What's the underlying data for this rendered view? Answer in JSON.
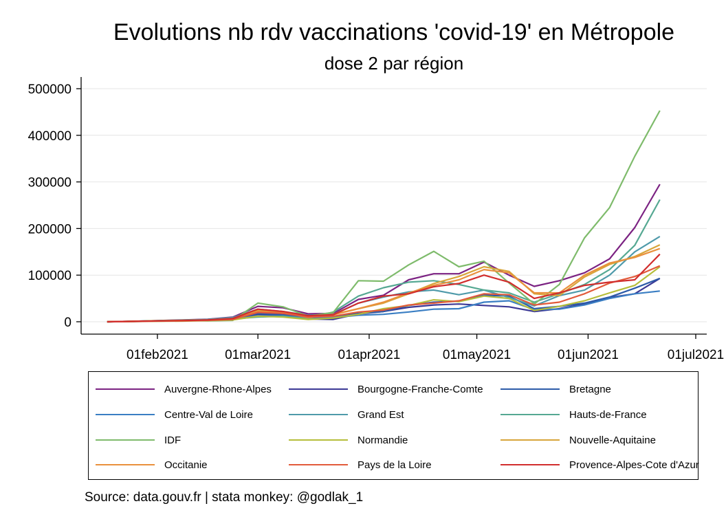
{
  "chart_data": {
    "type": "line",
    "title": "Evolutions nb rdv vaccinations 'covid-19' en Métropole",
    "subtitle": "dose 2 par région",
    "xlabel": "",
    "ylabel": "",
    "ylim": [
      -20000,
      520000
    ],
    "xlim": [
      "2021-01-14",
      "2021-07-01"
    ],
    "y_ticks": [
      0,
      100000,
      200000,
      300000,
      400000,
      500000
    ],
    "y_tick_labels": [
      "0",
      "100000",
      "200000",
      "300000",
      "400000",
      "500000"
    ],
    "x_ticks": [
      "2021-02-01",
      "2021-03-01",
      "2021-04-01",
      "2021-05-01",
      "2021-06-01",
      "2021-07-01"
    ],
    "x_tick_labels": [
      "01feb2021",
      "01mar2021",
      "01apr2021",
      "01may2021",
      "01jun2021",
      "01jul2021"
    ],
    "grid": true,
    "legend_position": "bottom",
    "note": "Source: data.gouv.fr | stata monkey: @godlak_1",
    "x": [
      "2021-01-18",
      "2021-01-25",
      "2021-02-01",
      "2021-02-08",
      "2021-02-15",
      "2021-02-22",
      "2021-03-01",
      "2021-03-08",
      "2021-03-15",
      "2021-03-22",
      "2021-03-29",
      "2021-04-05",
      "2021-04-12",
      "2021-04-19",
      "2021-04-26",
      "2021-05-03",
      "2021-05-10",
      "2021-05-17",
      "2021-05-24",
      "2021-05-31",
      "2021-06-07",
      "2021-06-14",
      "2021-06-21"
    ],
    "series": [
      {
        "name": "Auvergne-Rhone-Alpes",
        "color": "#7b2282",
        "values": [
          0,
          1000,
          2500,
          4000,
          5500,
          10000,
          33000,
          30000,
          17000,
          18000,
          48000,
          57000,
          90000,
          103000,
          103000,
          128000,
          100000,
          76000,
          88000,
          105000,
          135000,
          202000,
          295000
        ]
      },
      {
        "name": "Bourgogne-Franche-Comte",
        "color": "#3b3895",
        "values": [
          0,
          800,
          2000,
          3000,
          4000,
          8000,
          15000,
          14000,
          6000,
          5000,
          17000,
          22000,
          31000,
          36000,
          38000,
          35000,
          32000,
          22000,
          28000,
          38000,
          52000,
          60000,
          93000
        ]
      },
      {
        "name": "Bretagne",
        "color": "#2c5aa8",
        "values": [
          0,
          700,
          1800,
          2500,
          3500,
          6000,
          18000,
          15000,
          10000,
          10000,
          18000,
          22000,
          35000,
          42000,
          44000,
          57000,
          55000,
          28000,
          33000,
          40000,
          53000,
          72000,
          93000
        ]
      },
      {
        "name": "Centre-Val de Loire",
        "color": "#3a7ec3",
        "values": [
          0,
          500,
          1500,
          2000,
          3000,
          5000,
          13000,
          12000,
          8000,
          9000,
          14000,
          16000,
          21000,
          27000,
          28000,
          42000,
          45000,
          26000,
          27000,
          36000,
          50000,
          60000,
          66000
        ]
      },
      {
        "name": "Grand Est",
        "color": "#4f9aaa",
        "values": [
          0,
          1000,
          2500,
          3500,
          5000,
          9000,
          27000,
          22000,
          14000,
          16000,
          40000,
          53000,
          64000,
          68000,
          58000,
          68000,
          52000,
          34000,
          56000,
          68000,
          100000,
          150000,
          183000
        ]
      },
      {
        "name": "Hauts-de-France",
        "color": "#55a892",
        "values": [
          0,
          800,
          1500,
          2500,
          3500,
          6000,
          10000,
          12000,
          7000,
          21000,
          55000,
          73000,
          85000,
          88000,
          80000,
          68000,
          62000,
          42000,
          60000,
          80000,
          112000,
          164000,
          262000
        ]
      },
      {
        "name": "IDF",
        "color": "#7ebb6b",
        "values": [
          0,
          1000,
          2000,
          3000,
          2000,
          3000,
          40000,
          32000,
          12000,
          20000,
          88000,
          87000,
          122000,
          151000,
          118000,
          130000,
          83000,
          38000,
          80000,
          180000,
          245000,
          355000,
          453000
        ]
      },
      {
        "name": "Normandie",
        "color": "#b5bd3a",
        "values": [
          0,
          500,
          1000,
          1500,
          2500,
          4000,
          12000,
          10000,
          5000,
          8000,
          16000,
          28000,
          35000,
          47000,
          43000,
          55000,
          50000,
          24000,
          33000,
          45000,
          62000,
          78000,
          118000
        ]
      },
      {
        "name": "Nouvelle-Aquitaine",
        "color": "#d8a53a",
        "values": [
          0,
          1000,
          2000,
          3000,
          4000,
          7000,
          25000,
          22000,
          10000,
          16000,
          28000,
          40000,
          60000,
          82000,
          97000,
          118000,
          108000,
          60000,
          56000,
          96000,
          123000,
          140000,
          165000
        ]
      },
      {
        "name": "Occitanie",
        "color": "#e9903c",
        "values": [
          0,
          800,
          1800,
          2500,
          3500,
          6000,
          22000,
          20000,
          9000,
          15000,
          28000,
          42000,
          62000,
          78000,
          90000,
          112000,
          105000,
          62000,
          62000,
          100000,
          126000,
          138000,
          157000
        ]
      },
      {
        "name": "Pays de la Loire",
        "color": "#e25a3a",
        "values": [
          0,
          600,
          1500,
          2000,
          3000,
          5000,
          20000,
          18000,
          10000,
          12000,
          21000,
          25000,
          36000,
          40000,
          45000,
          60000,
          58000,
          36000,
          42000,
          60000,
          83000,
          97000,
          120000
        ]
      },
      {
        "name": "Provence-Alpes-Cote d'Azur",
        "color": "#d12d2d",
        "values": [
          0,
          900,
          1800,
          2500,
          4000,
          7000,
          27000,
          22000,
          13000,
          15000,
          40000,
          55000,
          60000,
          75000,
          82000,
          100000,
          85000,
          50000,
          62000,
          78000,
          85000,
          90000,
          145000
        ]
      }
    ]
  }
}
